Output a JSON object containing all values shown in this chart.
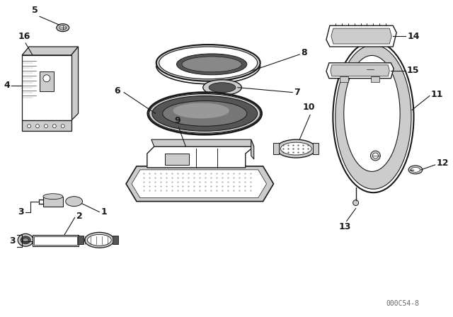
{
  "background_color": "#ffffff",
  "line_color": "#1a1a1a",
  "watermark": "000C54-8",
  "fig_w": 6.4,
  "fig_h": 4.48,
  "dpi": 100
}
